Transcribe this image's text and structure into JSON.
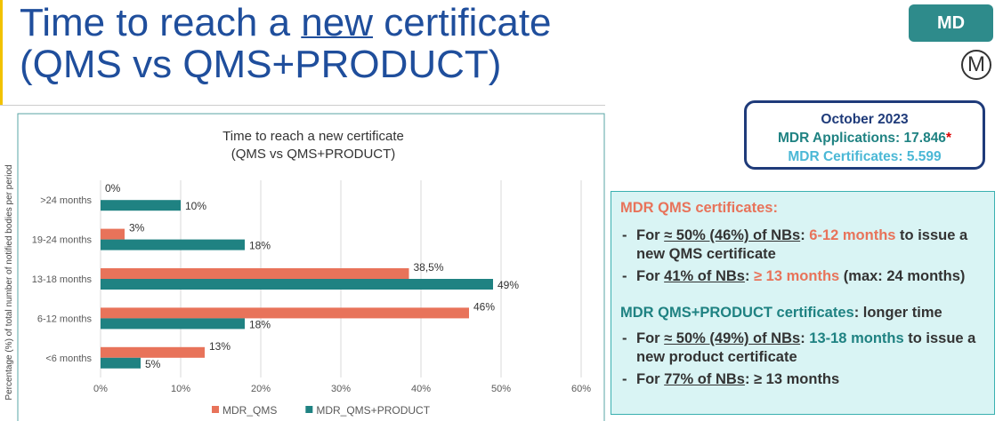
{
  "slide": {
    "title_parts": [
      "Time to reach a ",
      "new",
      " certificate"
    ],
    "title_line2": "(QMS vs QMS+PRODUCT)",
    "badge": "MD",
    "logo": "M"
  },
  "info_box": {
    "date": "October 2023",
    "applications": "MDR Applications: 17.846",
    "footnote_mark": "*",
    "certificates": "MDR Certificates: 5.599"
  },
  "notes": {
    "qms_heading": "MDR QMS certificates:",
    "qms_bullets": [
      [
        "For ",
        "≈ 50% (46%) of NBs",
        ": ",
        "6-12 months",
        " to issue a new QMS certificate"
      ],
      [
        "For ",
        "41% of NBs",
        ": ",
        "≥ 13 months",
        " (max: 24 months)"
      ]
    ],
    "product_heading": [
      "MDR QMS+PRODUCT certificates",
      ": longer time"
    ],
    "product_bullets": [
      [
        "For ",
        "≈ 50% (49%) of NBs",
        ": ",
        "13-18 months",
        " to issue a new product certificate"
      ],
      [
        "For ",
        "77% of NBs",
        ": ≥ 13 months"
      ]
    ]
  },
  "chart_data": {
    "type": "bar",
    "orientation": "horizontal",
    "title": "Time to reach a new certificate",
    "subtitle": "(QMS vs QMS+PRODUCT)",
    "y_label": "Percentage (%) of total number of notified bodies per period",
    "categories": [
      ">24 months",
      "19-24 months",
      "13-18 months",
      "6-12 months",
      "<6 months"
    ],
    "series": [
      {
        "name": "MDR_QMS",
        "color": "#e8735a",
        "values": [
          0,
          3,
          38.5,
          46,
          13
        ],
        "value_labels": [
          "0%",
          "3%",
          "38,5%",
          "46%",
          "13%"
        ]
      },
      {
        "name": "MDR_QMS+PRODUCT",
        "color": "#1f8282",
        "values": [
          10,
          18,
          49,
          18,
          5
        ],
        "value_labels": [
          "10%",
          "18%",
          "49%",
          "18%",
          "5%"
        ]
      }
    ],
    "xlim": [
      0,
      60
    ],
    "xticks": [
      {
        "value": 0,
        "label": "0%"
      },
      {
        "value": 10,
        "label": "10%"
      },
      {
        "value": 20,
        "label": "20%"
      },
      {
        "value": 30,
        "label": "30%"
      },
      {
        "value": 40,
        "label": "40%"
      },
      {
        "value": 50,
        "label": "50%"
      },
      {
        "value": 60,
        "label": "60%"
      }
    ],
    "grid": true,
    "legend": "bottom"
  }
}
